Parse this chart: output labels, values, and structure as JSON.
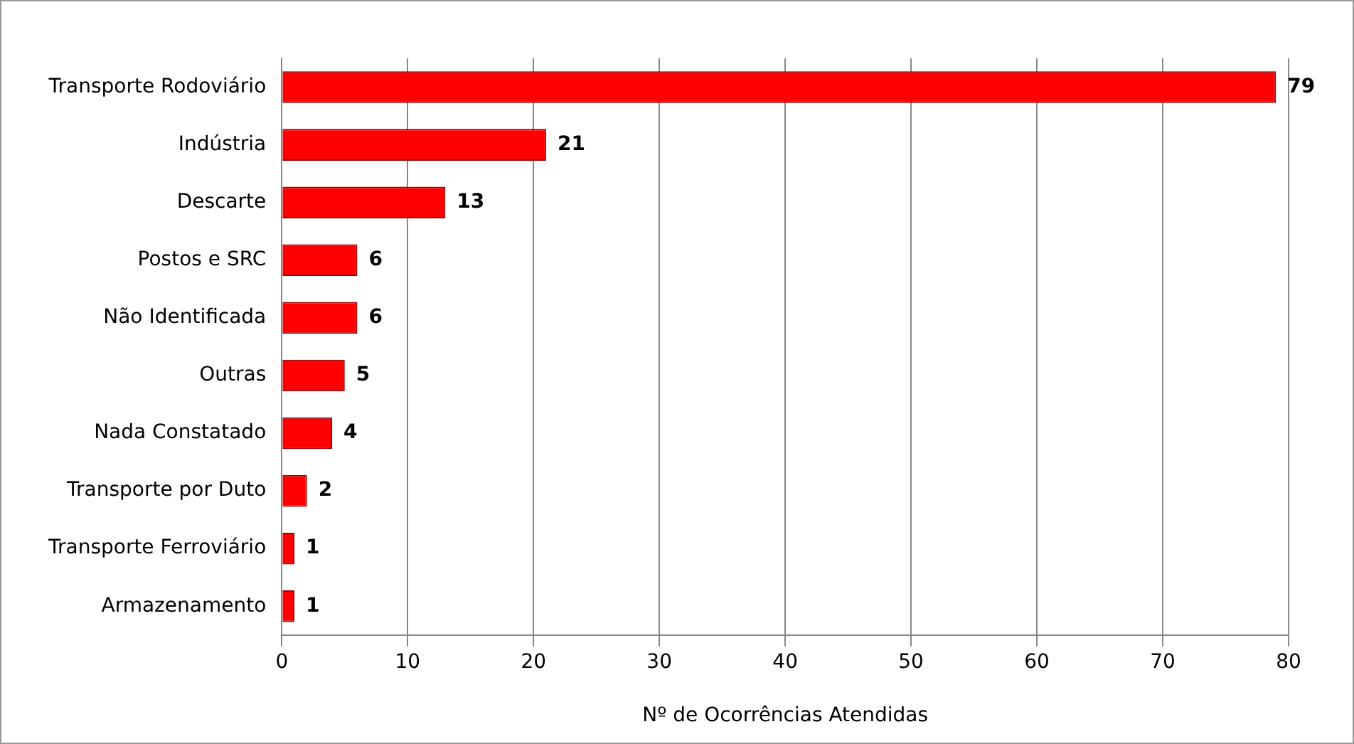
{
  "chart_data": {
    "type": "bar",
    "orientation": "horizontal",
    "xlabel": "Nº de Ocorrências Atendidas",
    "categories": [
      "Transporte Rodoviário",
      "Indústria",
      "Descarte",
      "Postos e SRC",
      "Não Identificada",
      "Outras",
      "Nada Constatado",
      "Transporte por Duto",
      "Transporte Ferroviário",
      "Armazenamento"
    ],
    "values": [
      79,
      21,
      13,
      6,
      6,
      5,
      4,
      2,
      1,
      1
    ],
    "color": "#ff0000",
    "xlim": [
      0,
      80
    ],
    "xticks": [
      0,
      10,
      20,
      30,
      40,
      50,
      60,
      70,
      80
    ],
    "grid": "x",
    "legend": false,
    "data_labels": true
  }
}
